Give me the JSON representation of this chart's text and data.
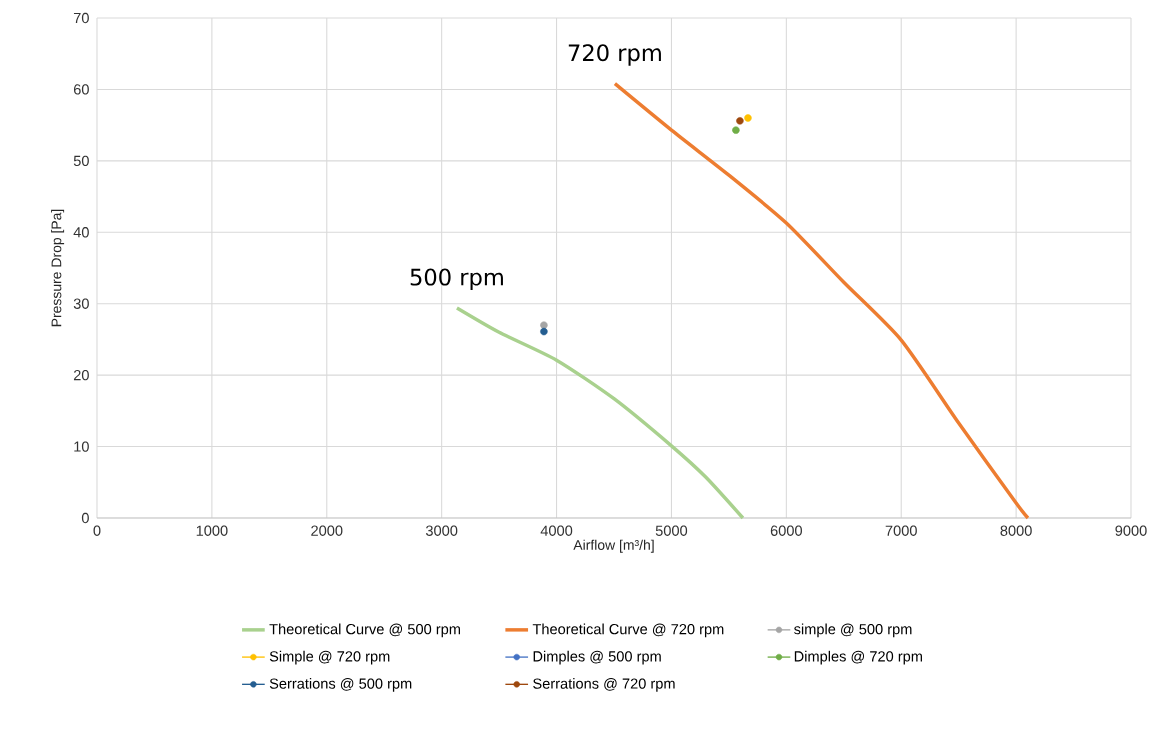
{
  "chart_data": {
    "type": "scatter",
    "xlabel": "Airflow [m³/h]",
    "ylabel": "Pressure Drop [Pa]",
    "xlim": [
      0,
      9000
    ],
    "xticks": [
      0,
      1000,
      2000,
      3000,
      4000,
      5000,
      6000,
      7000,
      8000,
      9000
    ],
    "ylim": [
      0,
      70
    ],
    "yticks": [
      0,
      10,
      20,
      30,
      40,
      50,
      60,
      70
    ],
    "grid": true,
    "legend": "bottom",
    "annotations": [
      {
        "text": "720 rpm",
        "x": 4508,
        "y": 60.8
      },
      {
        "text": "500 rpm",
        "x": 3133,
        "y": 29.4
      }
    ],
    "series": [
      {
        "name": "Theoretical Curve @ 500 rpm",
        "type": "line",
        "marker": "none",
        "color": "#a9d18e",
        "x": [
          3133,
          3500,
          4000,
          4500,
          5000,
          5300,
          5622
        ],
        "values": [
          29.4,
          26.0,
          22.1,
          16.7,
          10.1,
          5.7,
          0
        ]
      },
      {
        "name": "Theoretical Curve @ 720 rpm",
        "type": "line",
        "marker": "none",
        "color": "#ed7d31",
        "x": [
          4508,
          5000,
          5500,
          6000,
          6500,
          7000,
          7500,
          8000,
          8103
        ],
        "values": [
          60.8,
          54.3,
          48.0,
          41.3,
          33.0,
          24.9,
          13.3,
          2.1,
          0
        ]
      },
      {
        "name": "simple @ 500 rpm",
        "marker": "circle",
        "color": "#a5a5a5",
        "x": [
          3890
        ],
        "values": [
          27.0
        ]
      },
      {
        "name": "Simple @ 720 rpm",
        "marker": "circle",
        "color": "#ffc000",
        "x": [
          5666
        ],
        "values": [
          56.0
        ]
      },
      {
        "name": "Dimples @ 500 rpm",
        "marker": "circle",
        "color": "#4472c4",
        "x": [
          null
        ],
        "values": [
          null
        ]
      },
      {
        "name": "Dimples @ 720 rpm",
        "marker": "circle",
        "color": "#70ad47",
        "x": [
          5561
        ],
        "values": [
          54.3
        ]
      },
      {
        "name": "Serrations @ 500 rpm",
        "marker": "circle",
        "color": "#255e91",
        "x": [
          3890
        ],
        "values": [
          26.1
        ]
      },
      {
        "name": "Serrations @ 720 rpm",
        "marker": "circle",
        "color": "#9e480e",
        "x": [
          5596
        ],
        "values": [
          55.6
        ]
      }
    ]
  }
}
